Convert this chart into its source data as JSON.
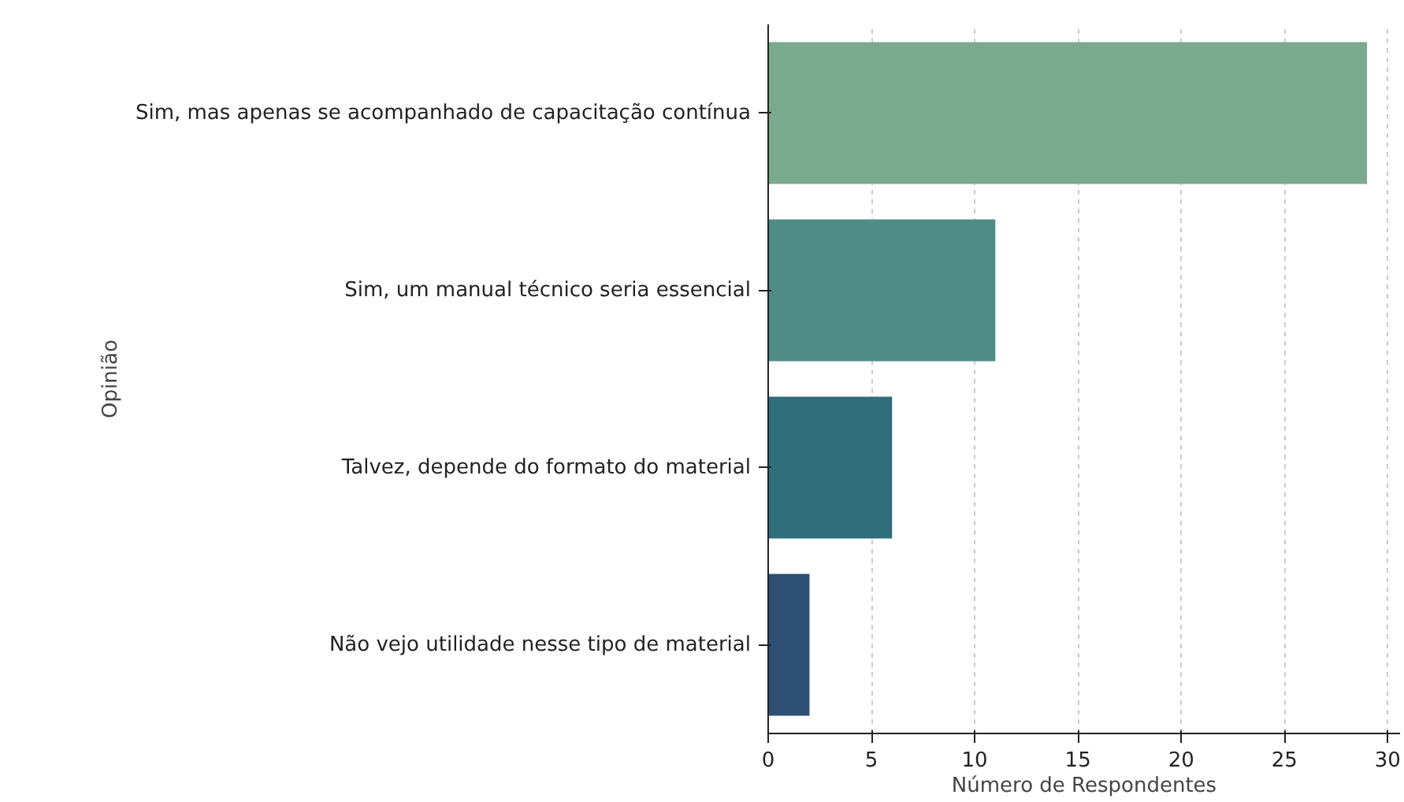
{
  "chart_data": {
    "type": "bar",
    "orientation": "horizontal",
    "xlabel": "Número de Respondentes",
    "ylabel": "Opinião",
    "categories": [
      "Sim, mas apenas se acompanhado de capacitação contínua",
      "Sim, um manual técnico seria essencial",
      "Talvez, depende do formato do material",
      "Não vejo utilidade nesse tipo de material"
    ],
    "values": [
      29,
      11,
      6,
      2
    ],
    "colors": [
      "#79a98e",
      "#4f8c86",
      "#316e7c",
      "#2d4f73"
    ],
    "xlim": [
      0,
      30.6
    ],
    "xticks": [
      0,
      5,
      10,
      15,
      20,
      25,
      30
    ],
    "grid": "x"
  }
}
